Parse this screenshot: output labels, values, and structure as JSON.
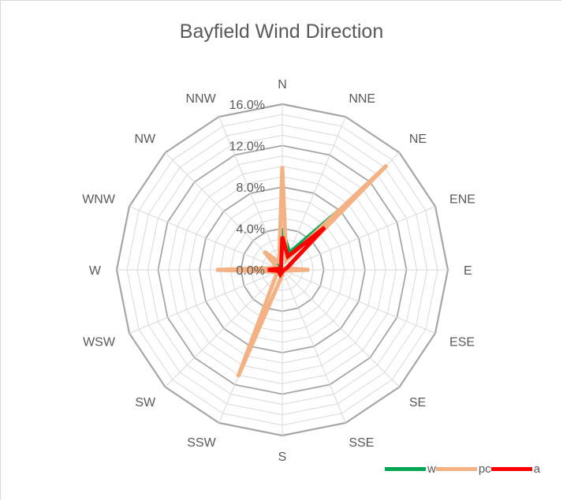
{
  "chart_data": {
    "type": "radar",
    "title": "Bayfield Wind Direction",
    "categories": [
      "N",
      "NNE",
      "NE",
      "ENE",
      "E",
      "ESE",
      "SE",
      "SSE",
      "S",
      "SSW",
      "SW",
      "WSW",
      "W",
      "WNW",
      "NW",
      "NNW"
    ],
    "radial_ticks": [
      "0.0%",
      "4.0%",
      "8.0%",
      "12.0%",
      "16.0%"
    ],
    "rlim": [
      0,
      16
    ],
    "grid": true,
    "legend_position": "bottom-right",
    "series": [
      {
        "name": "w",
        "color": "#00a651",
        "values": [
          4.0,
          1.8,
          10.5,
          0.3,
          0.2,
          0.1,
          0.1,
          0.1,
          0.2,
          0.3,
          0.4,
          0.6,
          2.8,
          0.5,
          0.6,
          0.4
        ]
      },
      {
        "name": "pc",
        "color": "#f4b183",
        "values": [
          10.0,
          1.0,
          14.3,
          0.4,
          2.6,
          0.2,
          0.2,
          0.2,
          0.5,
          11.2,
          0.9,
          0.5,
          6.4,
          0.5,
          2.5,
          0.8
        ]
      },
      {
        "name": "a",
        "color": "#ff0000",
        "values": [
          3.2,
          1.4,
          5.8,
          0.5,
          0.2,
          0.1,
          0.1,
          0.1,
          0.2,
          0.5,
          0.4,
          0.3,
          1.4,
          0.3,
          0.3,
          0.3
        ]
      }
    ]
  }
}
